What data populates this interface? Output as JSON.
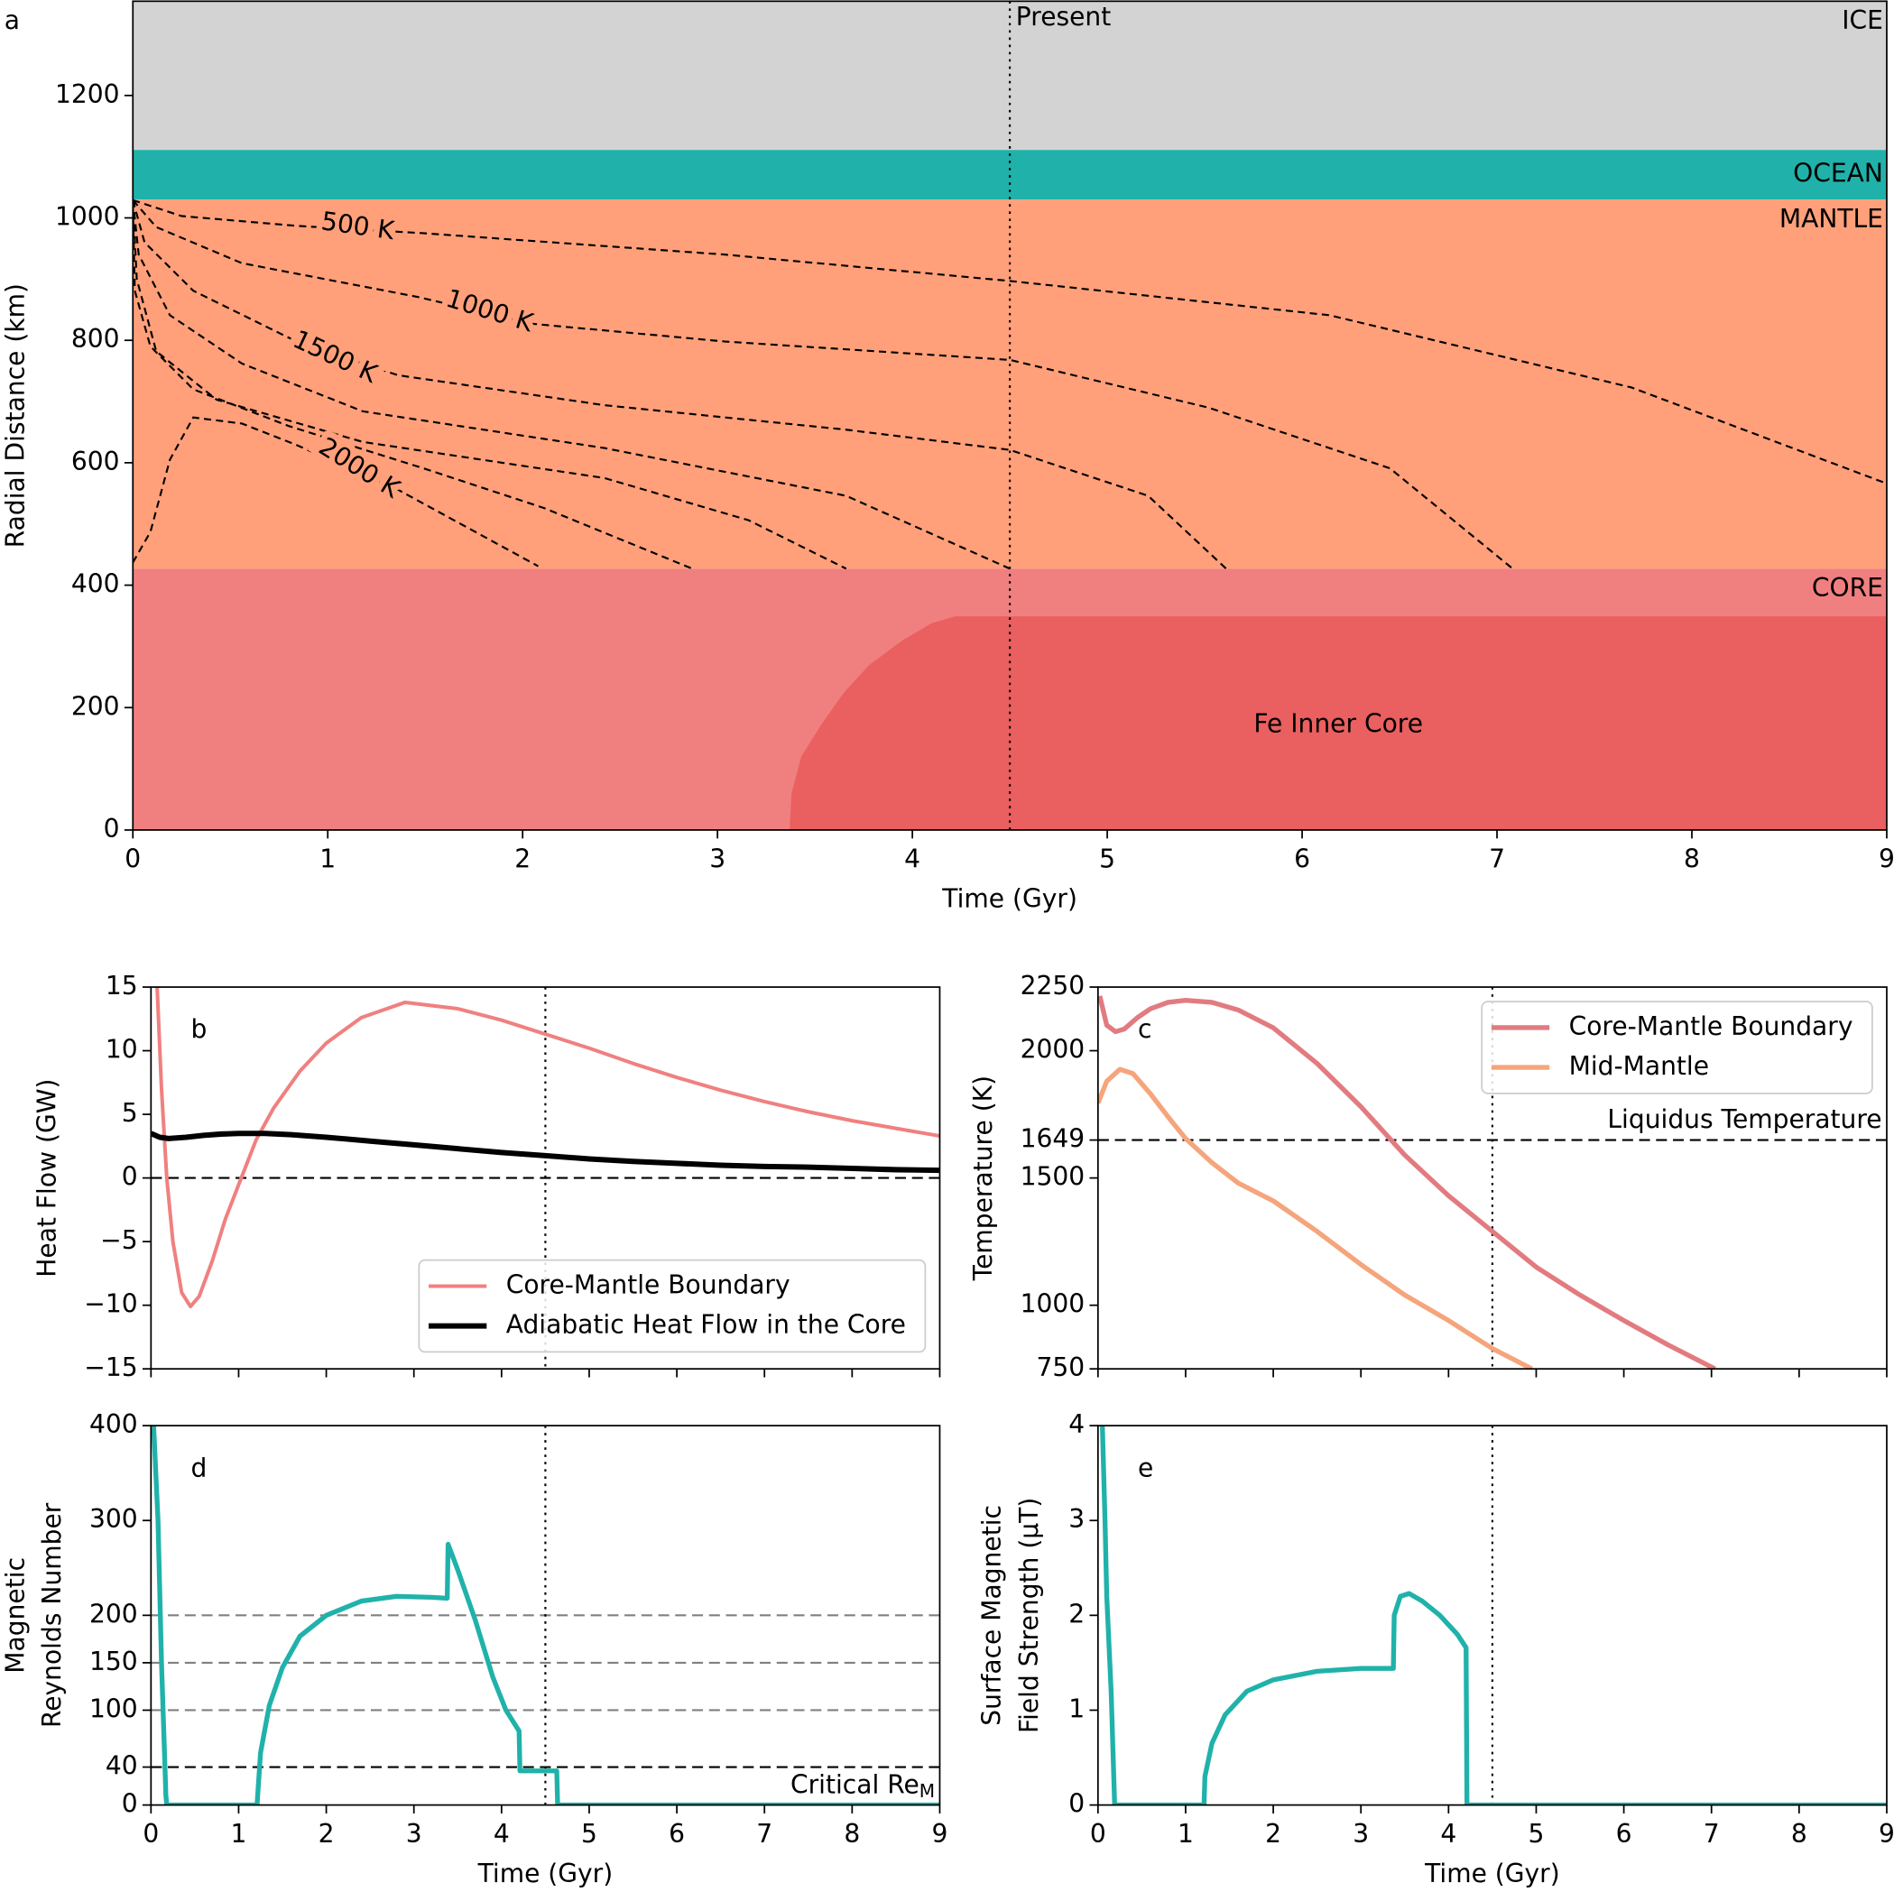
{
  "chart_data": [
    {
      "type": "layers",
      "label": "a",
      "xlabel": "Time (Gyr)",
      "ylabel": [
        "Radial Distance (km)"
      ],
      "xlim": [
        0,
        9
      ],
      "ylim": [
        0,
        1354
      ],
      "xticks": [
        0,
        1,
        2,
        3,
        4,
        5,
        6,
        7,
        8,
        9
      ],
      "yticks": [
        0,
        200,
        400,
        600,
        800,
        1000,
        1200
      ],
      "layers": [
        {
          "name": "ICE",
          "color": "#d3d3d3",
          "range": [
            1111,
            1354
          ]
        },
        {
          "name": "OCEAN",
          "color": "#20b2aa",
          "range": [
            1030,
            1111
          ]
        },
        {
          "name": "MANTLE",
          "color": "#ffa07a",
          "range": [
            427,
            1030
          ]
        },
        {
          "name": "CORE",
          "color": "#f08080",
          "range": [
            0,
            427
          ]
        }
      ],
      "inner_core": {
        "name": "Fe Inner Core",
        "color": "#ea5f5f",
        "x": [
          3.37,
          3.38,
          3.43,
          3.53,
          3.65,
          3.78,
          3.95,
          4.1,
          4.22,
          9
        ],
        "y": [
          0,
          60,
          120,
          171,
          225,
          270,
          310,
          338,
          349,
          349
        ]
      },
      "contours": [
        {
          "label": "500 K",
          "x": [
            0,
            0.25,
            0.84,
            1.49,
            3.04,
            4.5,
            6.14,
            7.69,
            9
          ],
          "y": [
            1029,
            1003,
            987,
            975,
            940,
            897,
            841,
            723,
            566
          ]
        },
        {
          "label": "1000 K",
          "x": [
            0,
            0.12,
            0.56,
            1.46,
            2.05,
            3.04,
            4.5,
            5.52,
            6.45,
            7.08
          ],
          "y": [
            1029,
            985,
            926,
            871,
            827,
            798,
            768,
            690,
            591,
            427
          ]
        },
        {
          "label": "1500 K",
          "x": [
            0,
            0.06,
            0.31,
            0.84,
            1.36,
            2.42,
            3.66,
            4.5,
            5.21,
            5.61
          ],
          "y": [
            1029,
            960,
            881,
            798,
            743,
            694,
            654,
            621,
            546,
            427
          ]
        },
        {
          "x": [
            0,
            0.03,
            0.19,
            0.56,
            1.18,
            2.42,
            3.66,
            4.5
          ],
          "y": [
            1029,
            940,
            841,
            762,
            684,
            624,
            546,
            427
          ]
        },
        {
          "x": [
            0,
            0.02,
            0.12,
            0.43,
            1.18,
            2.42,
            3.16,
            3.66
          ],
          "y": [
            1029,
            900,
            782,
            703,
            634,
            575,
            506,
            427
          ]
        },
        {
          "x": [
            0,
            0.01,
            0.09,
            0.31,
            0.8,
            1.5,
            2.11,
            2.87
          ],
          "y": [
            1019,
            881,
            790,
            720,
            660,
            590,
            526,
            427
          ]
        },
        {
          "label": "2000 K",
          "x": [
            0,
            0.09,
            0.19,
            0.31,
            0.56,
            0.84,
            1.36,
            2.08
          ],
          "y": [
            437,
            487,
            605,
            674,
            664,
            629,
            556,
            431
          ]
        }
      ],
      "vlines": [
        {
          "x": 4.5,
          "style": "dotted",
          "label": "Present"
        }
      ]
    },
    {
      "type": "line",
      "label": "b",
      "ylabel": [
        "Heat Flow (GW)"
      ],
      "xlim": [
        0,
        9
      ],
      "ylim": [
        -15,
        15
      ],
      "xticks": [
        0,
        1,
        2,
        3,
        4,
        5,
        6,
        7,
        8,
        9
      ],
      "xtick_labels": false,
      "yticks": [
        {
          "value": -15,
          "label": "−15"
        },
        {
          "value": -10,
          "label": "−10"
        },
        {
          "value": -5,
          "label": "−5"
        },
        0,
        5,
        10,
        15
      ],
      "hlines": [
        {
          "y": 0,
          "style": "dashed",
          "color": "#000000"
        }
      ],
      "vlines": [
        {
          "x": 4.5,
          "style": "dotted"
        }
      ],
      "legend": "lower right",
      "series": [
        {
          "name": "Core-Mantle Boundary",
          "color": "#f08080",
          "linewidth": 3,
          "x": [
            0.07,
            0.12,
            0.18,
            0.25,
            0.35,
            0.45,
            0.55,
            0.7,
            0.85,
            1.03,
            1.2,
            1.4,
            1.7,
            2.0,
            2.4,
            2.9,
            3.5,
            4.0,
            4.5,
            5.0,
            5.5,
            6.0,
            6.5,
            7.0,
            7.5,
            8.0,
            8.5,
            9.0
          ],
          "values": [
            15,
            7,
            0,
            -5,
            -9,
            -10.1,
            -9.3,
            -6.5,
            -3.2,
            0,
            3,
            5.5,
            8.4,
            10.6,
            12.6,
            13.8,
            13.3,
            12.4,
            11.3,
            10.2,
            9.0,
            7.9,
            6.9,
            6.0,
            5.2,
            4.5,
            3.9,
            3.3
          ]
        },
        {
          "name": "Adiabatic Heat Flow in the Core",
          "color": "#000000",
          "linewidth": 4.5,
          "x": [
            0,
            0.1,
            0.2,
            0.4,
            0.6,
            0.8,
            1.0,
            1.3,
            1.6,
            2.0,
            2.5,
            3.0,
            3.5,
            4.0,
            4.5,
            5.0,
            5.5,
            6.0,
            6.5,
            7.0,
            7.5,
            8.0,
            8.5,
            9.0
          ],
          "values": [
            3.5,
            3.2,
            3.1,
            3.2,
            3.35,
            3.45,
            3.5,
            3.5,
            3.4,
            3.2,
            2.9,
            2.6,
            2.3,
            2.0,
            1.75,
            1.5,
            1.3,
            1.15,
            1.0,
            0.9,
            0.85,
            0.75,
            0.65,
            0.6
          ]
        }
      ]
    },
    {
      "type": "line",
      "label": "c",
      "ylabel": [
        "Temperature (K)"
      ],
      "xlim": [
        0,
        9
      ],
      "ylim": [
        750,
        2250
      ],
      "xticks": [
        0,
        1,
        2,
        3,
        4,
        5,
        6,
        7,
        8,
        9
      ],
      "xtick_labels": false,
      "yticks": [
        750,
        1000,
        1500,
        1649,
        2000,
        2250
      ],
      "hlines": [
        {
          "y": 1649,
          "style": "dashed",
          "color": "#000000",
          "label": "Liquidus Temperature"
        }
      ],
      "vlines": [
        {
          "x": 4.5,
          "style": "dotted"
        }
      ],
      "legend": "upper right",
      "series": [
        {
          "name": "Core-Mantle Boundary",
          "color": "#e27b80",
          "linewidth": 4,
          "x": [
            0.02,
            0.1,
            0.2,
            0.3,
            0.45,
            0.6,
            0.8,
            1.0,
            1.3,
            1.6,
            2.0,
            2.5,
            3.0,
            3.5,
            4.0,
            4.5,
            5.0,
            5.5,
            6.0,
            6.5,
            7.04
          ],
          "values": [
            2215,
            2100,
            2075,
            2085,
            2130,
            2165,
            2190,
            2198,
            2190,
            2160,
            2090,
            1950,
            1780,
            1590,
            1430,
            1290,
            1150,
            1040,
            940,
            845,
            750
          ]
        },
        {
          "name": "Mid-Mantle",
          "color": "#f5a57c",
          "linewidth": 4,
          "x": [
            0,
            0.1,
            0.25,
            0.4,
            0.6,
            0.8,
            1.0,
            1.3,
            1.6,
            2.0,
            2.5,
            3.0,
            3.5,
            4.0,
            4.5,
            4.95
          ],
          "values": [
            1794,
            1880,
            1927,
            1910,
            1830,
            1740,
            1655,
            1560,
            1480,
            1410,
            1290,
            1160,
            1040,
            940,
            830,
            750
          ]
        }
      ]
    },
    {
      "type": "line",
      "label": "d",
      "xlabel": "Time (Gyr)",
      "ylabel": [
        "Magnetic",
        "Reynolds Number"
      ],
      "xlim": [
        0,
        9
      ],
      "ylim": [
        0,
        400
      ],
      "xticks": [
        0,
        1,
        2,
        3,
        4,
        5,
        6,
        7,
        8,
        9
      ],
      "yticks": [
        0,
        40,
        100,
        150,
        200,
        300,
        400
      ],
      "hlines": [
        {
          "y": 100,
          "style": "dashed",
          "color": "#808080"
        },
        {
          "y": 150,
          "style": "dashed",
          "color": "#808080"
        },
        {
          "y": 200,
          "style": "dashed",
          "color": "#808080"
        },
        {
          "y": 40,
          "style": "dashed",
          "color": "#000000",
          "label": {
            "text": "Critical Re",
            "sub": "M"
          }
        }
      ],
      "vlines": [
        {
          "x": 4.5,
          "style": "dotted"
        }
      ],
      "series": [
        {
          "color": "#20b2aa",
          "linewidth": 4,
          "x": [
            0.03,
            0.08,
            0.12,
            0.17,
            0.18,
            1.2,
            1.21,
            1.25,
            1.35,
            1.5,
            1.7,
            2.0,
            2.4,
            2.8,
            3.2,
            3.38,
            3.39,
            3.5,
            3.7,
            3.9,
            4.05,
            4.2,
            4.21,
            4.63,
            4.64,
            9
          ],
          "values": [
            400,
            300,
            150,
            10,
            0,
            0,
            0,
            55,
            105,
            145,
            178,
            200,
            215,
            220,
            219,
            218,
            275,
            248,
            195,
            135,
            100,
            78,
            36,
            36,
            0,
            0
          ]
        }
      ]
    },
    {
      "type": "line",
      "label": "e",
      "xlabel": "Time (Gyr)",
      "ylabel": [
        "Surface Magnetic",
        "Field Strength (μT)"
      ],
      "xlim": [
        0,
        9
      ],
      "ylim": [
        0,
        4
      ],
      "xticks": [
        0,
        1,
        2,
        3,
        4,
        5,
        6,
        7,
        8,
        9
      ],
      "yticks": [
        0,
        1,
        2,
        3,
        4
      ],
      "vlines": [
        {
          "x": 4.5,
          "style": "dotted"
        }
      ],
      "series": [
        {
          "color": "#20b2aa",
          "linewidth": 4,
          "x": [
            0.05,
            0.08,
            0.1,
            0.15,
            0.18,
            0.19,
            1.21,
            1.22,
            1.3,
            1.45,
            1.7,
            2.0,
            2.5,
            3.0,
            3.37,
            3.38,
            3.45,
            3.55,
            3.7,
            3.9,
            4.1,
            4.2,
            4.21,
            9
          ],
          "values": [
            4,
            3,
            2.2,
            1.2,
            0.3,
            0,
            0,
            0.3,
            0.65,
            0.95,
            1.2,
            1.32,
            1.41,
            1.44,
            1.44,
            2.0,
            2.2,
            2.23,
            2.15,
            2.0,
            1.8,
            1.66,
            0,
            0
          ]
        }
      ]
    }
  ]
}
